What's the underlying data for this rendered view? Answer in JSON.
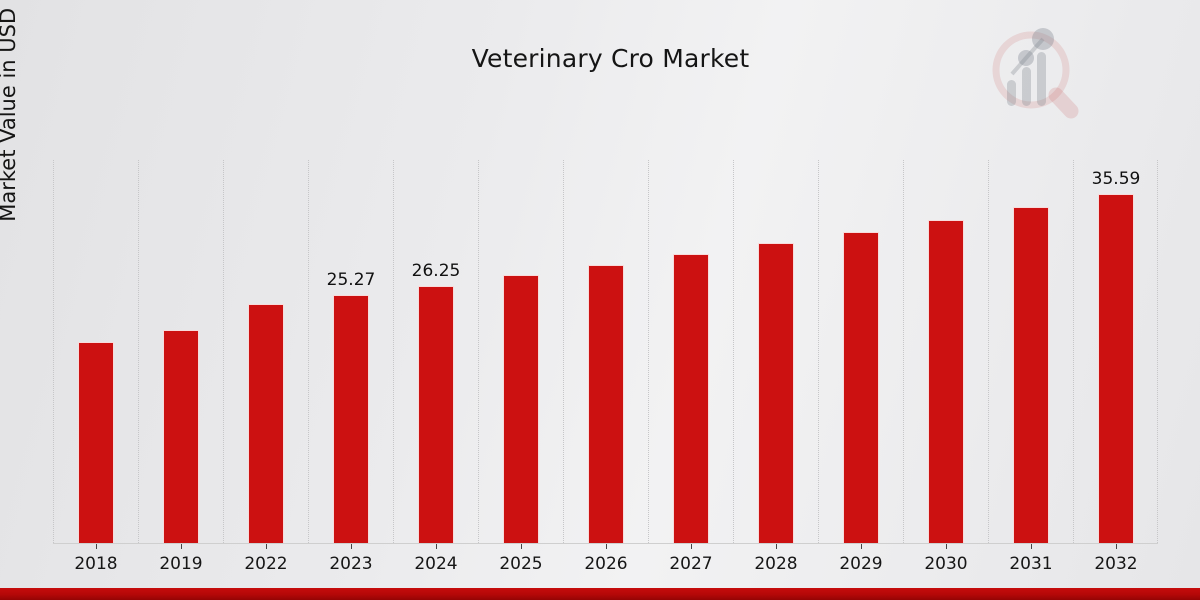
{
  "header": {
    "title": "Veterinary Cro Market"
  },
  "y_axis": {
    "label": "Market Value in USD Billion"
  },
  "chart_data": {
    "type": "bar",
    "title": "Veterinary Cro Market",
    "xlabel": "",
    "ylabel": "Market Value in USD Billion",
    "categories": [
      "2018",
      "2019",
      "2022",
      "2023",
      "2024",
      "2025",
      "2026",
      "2027",
      "2028",
      "2029",
      "2030",
      "2031",
      "2032"
    ],
    "values": [
      20.5,
      21.7,
      24.4,
      25.27,
      26.25,
      27.3,
      28.4,
      29.5,
      30.6,
      31.7,
      33.0,
      34.3,
      35.59
    ],
    "data_labels_shown": [
      "",
      "",
      "",
      "25.27",
      "26.25",
      "",
      "",
      "",
      "",
      "",
      "",
      "",
      "35.59"
    ],
    "ylim": [
      0,
      39
    ],
    "grid": "vertical-dotted",
    "legend": "none",
    "bar_color": "#CC1111",
    "gridline_color": "#c6c6c8",
    "axis_line_color": "#cfcfcf"
  },
  "footer": {
    "band_color": "#C00000"
  },
  "logo": {
    "name": "market-research-future-watermark",
    "lens_color": "#C95C5C",
    "bars_color": "#8A8E98"
  }
}
